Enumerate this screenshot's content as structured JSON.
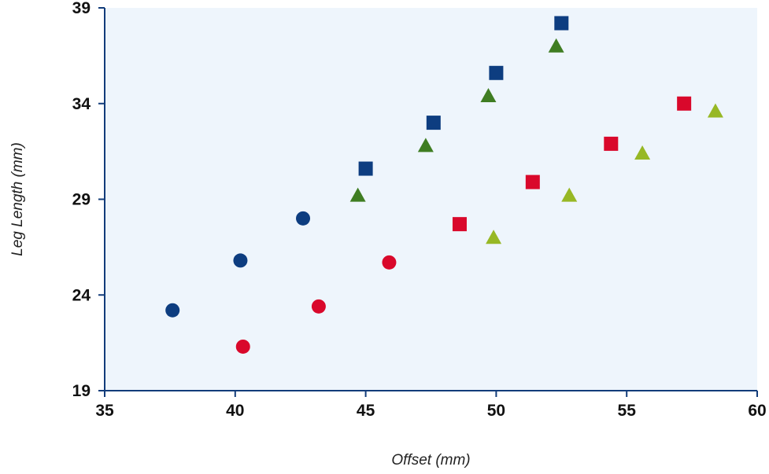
{
  "chart_data": {
    "type": "scatter",
    "title": "",
    "xlabel": "Offset (mm)",
    "ylabel": "Leg Length (mm)",
    "xlim": [
      35,
      60
    ],
    "ylim": [
      19,
      39
    ],
    "x_ticks": [
      35,
      40,
      45,
      50,
      55,
      60
    ],
    "y_ticks": [
      19,
      24,
      29,
      34,
      39
    ],
    "grid": false,
    "legend": "none",
    "colors": {
      "plot_background": "#eef5fc",
      "axis": "#123c7a",
      "dark_blue": "#0d3d80",
      "red": "#d9082b",
      "dark_green": "#3f7d22",
      "light_green": "#97b825"
    },
    "series": [
      {
        "marker": "circle",
        "color": "#0d3d80",
        "points": [
          [
            37.6,
            23.2
          ],
          [
            40.2,
            25.8
          ],
          [
            42.6,
            28.0
          ]
        ]
      },
      {
        "marker": "square",
        "color": "#0d3d80",
        "points": [
          [
            45.0,
            30.6
          ],
          [
            47.6,
            33.0
          ],
          [
            50.0,
            35.6
          ],
          [
            52.5,
            38.2
          ]
        ]
      },
      {
        "marker": "triangle",
        "color": "#3f7d22",
        "points": [
          [
            44.7,
            29.2
          ],
          [
            47.3,
            31.8
          ],
          [
            49.7,
            34.4
          ],
          [
            52.3,
            37.0
          ]
        ]
      },
      {
        "marker": "circle",
        "color": "#d9082b",
        "points": [
          [
            40.3,
            21.3
          ],
          [
            43.2,
            23.4
          ],
          [
            45.9,
            25.7
          ]
        ]
      },
      {
        "marker": "square",
        "color": "#d9082b",
        "points": [
          [
            48.6,
            27.7
          ],
          [
            51.4,
            29.9
          ],
          [
            54.4,
            31.9
          ],
          [
            57.2,
            34.0
          ]
        ]
      },
      {
        "marker": "triangle",
        "color": "#97b825",
        "points": [
          [
            49.9,
            27.0
          ],
          [
            52.8,
            29.2
          ],
          [
            55.6,
            31.4
          ],
          [
            58.4,
            33.6
          ]
        ]
      }
    ]
  }
}
